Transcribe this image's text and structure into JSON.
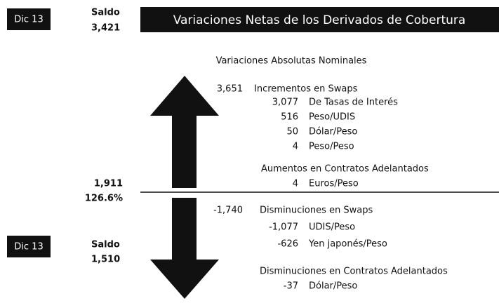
{
  "top": {
    "period": "Dic 13",
    "saldo_label": "Saldo",
    "saldo_value": "3,421"
  },
  "title": "Variaciones Netas de los Derivados de Cobertura",
  "subtitle": "Variaciones Absolutas Nominales",
  "net_change": {
    "value": "1,911",
    "percent": "126.6%"
  },
  "bottom": {
    "period": "Dic 13",
    "saldo_label": "Saldo",
    "saldo_value": "1,510"
  },
  "groups": [
    {
      "value": "3,651",
      "label": "Incrementos en Swaps",
      "items": [
        {
          "value": "3,077",
          "label": "De Tasas de Interés"
        },
        {
          "value": "516",
          "label": "Peso/UDIS"
        },
        {
          "value": "50",
          "label": "Dólar/Peso"
        },
        {
          "value": "4",
          "label": "Peso/Peso"
        }
      ]
    },
    {
      "label": "Aumentos en Contratos Adelantados",
      "items": [
        {
          "value": "4",
          "label": "Euros/Peso"
        }
      ]
    },
    {
      "value": "-1,740",
      "label": "Disminuciones en Swaps",
      "items": [
        {
          "value": "-1,077",
          "label": "UDIS/Peso"
        },
        {
          "value": "-626",
          "label": "Yen japonés/Peso"
        }
      ]
    },
    {
      "label": "Disminuciones en Contratos Adelantados",
      "items": [
        {
          "value": "-37",
          "label": "Dólar/Peso"
        }
      ]
    }
  ]
}
